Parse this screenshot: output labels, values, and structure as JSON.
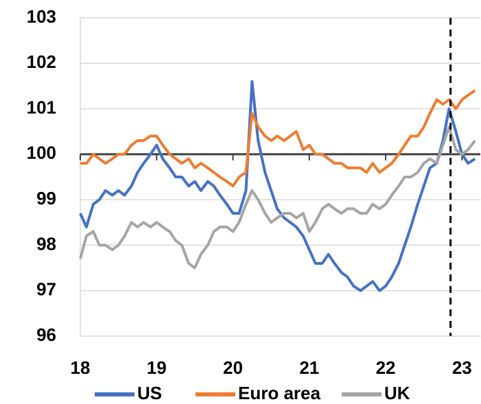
{
  "chart_data": {
    "type": "line",
    "x": [
      18,
      18.08,
      18.17,
      18.25,
      18.33,
      18.42,
      18.5,
      18.58,
      18.67,
      18.75,
      18.83,
      18.92,
      19,
      19.08,
      19.17,
      19.25,
      19.33,
      19.42,
      19.5,
      19.58,
      19.67,
      19.75,
      19.83,
      19.92,
      20,
      20.08,
      20.17,
      20.25,
      20.33,
      20.42,
      20.5,
      20.58,
      20.67,
      20.75,
      20.83,
      20.92,
      21,
      21.08,
      21.17,
      21.25,
      21.33,
      21.42,
      21.5,
      21.58,
      21.67,
      21.75,
      21.83,
      21.92,
      22,
      22.08,
      22.17,
      22.25,
      22.33,
      22.42,
      22.5,
      22.58,
      22.67,
      22.75,
      22.83,
      22.92,
      23,
      23.08,
      23.17
    ],
    "series": [
      {
        "name": "US",
        "color": "#4472c4",
        "values": [
          98.7,
          98.4,
          98.9,
          99.0,
          99.2,
          99.1,
          99.2,
          99.1,
          99.3,
          99.6,
          99.8,
          100.0,
          100.2,
          99.9,
          99.7,
          99.5,
          99.5,
          99.3,
          99.4,
          99.2,
          99.4,
          99.3,
          99.1,
          98.9,
          98.7,
          98.7,
          99.2,
          101.6,
          100.3,
          99.6,
          99.2,
          98.8,
          98.6,
          98.5,
          98.4,
          98.2,
          97.9,
          97.6,
          97.6,
          97.8,
          97.6,
          97.4,
          97.3,
          97.1,
          97.0,
          97.1,
          97.2,
          97.0,
          97.1,
          97.3,
          97.6,
          98.0,
          98.4,
          98.9,
          99.3,
          99.7,
          99.8,
          100.3,
          101.0,
          100.5,
          100.0,
          99.8,
          99.9
        ]
      },
      {
        "name": "Euro area",
        "color": "#ed7d31",
        "values": [
          99.8,
          99.8,
          100.0,
          99.9,
          99.8,
          99.9,
          100.0,
          100.0,
          100.2,
          100.3,
          100.3,
          100.4,
          100.4,
          100.2,
          100.0,
          99.9,
          99.8,
          99.9,
          99.7,
          99.8,
          99.7,
          99.6,
          99.5,
          99.4,
          99.3,
          99.5,
          99.6,
          100.9,
          100.6,
          100.4,
          100.3,
          100.4,
          100.3,
          100.4,
          100.5,
          100.1,
          100.2,
          100.0,
          100.0,
          99.9,
          99.8,
          99.8,
          99.7,
          99.7,
          99.7,
          99.6,
          99.8,
          99.6,
          99.7,
          99.8,
          100.0,
          100.2,
          100.4,
          100.4,
          100.6,
          100.9,
          101.2,
          101.1,
          101.2,
          101.0,
          101.2,
          101.3,
          101.4
        ]
      },
      {
        "name": "UK",
        "color": "#a5a5a5",
        "values": [
          97.7,
          98.2,
          98.3,
          98.0,
          98.0,
          97.9,
          98.0,
          98.2,
          98.5,
          98.4,
          98.5,
          98.4,
          98.5,
          98.4,
          98.3,
          98.1,
          98.0,
          97.6,
          97.5,
          97.8,
          98.0,
          98.3,
          98.4,
          98.4,
          98.3,
          98.5,
          98.9,
          99.2,
          99.0,
          98.7,
          98.5,
          98.6,
          98.7,
          98.7,
          98.6,
          98.7,
          98.3,
          98.5,
          98.8,
          98.9,
          98.8,
          98.7,
          98.8,
          98.8,
          98.7,
          98.7,
          98.9,
          98.8,
          98.9,
          99.1,
          99.3,
          99.5,
          99.5,
          99.6,
          99.8,
          99.9,
          99.8,
          100.2,
          100.6,
          100.1,
          100.0,
          100.1,
          100.3
        ]
      }
    ],
    "xlim": [
      18,
      23.24
    ],
    "xticks": [
      18,
      19,
      20,
      21,
      22,
      23
    ],
    "ylim": [
      96,
      103
    ],
    "yticks": [
      96,
      97,
      98,
      99,
      100,
      101,
      102,
      103
    ],
    "grid": true,
    "x_axis_at": 100,
    "vline": 22.85,
    "legend": "bottom"
  }
}
